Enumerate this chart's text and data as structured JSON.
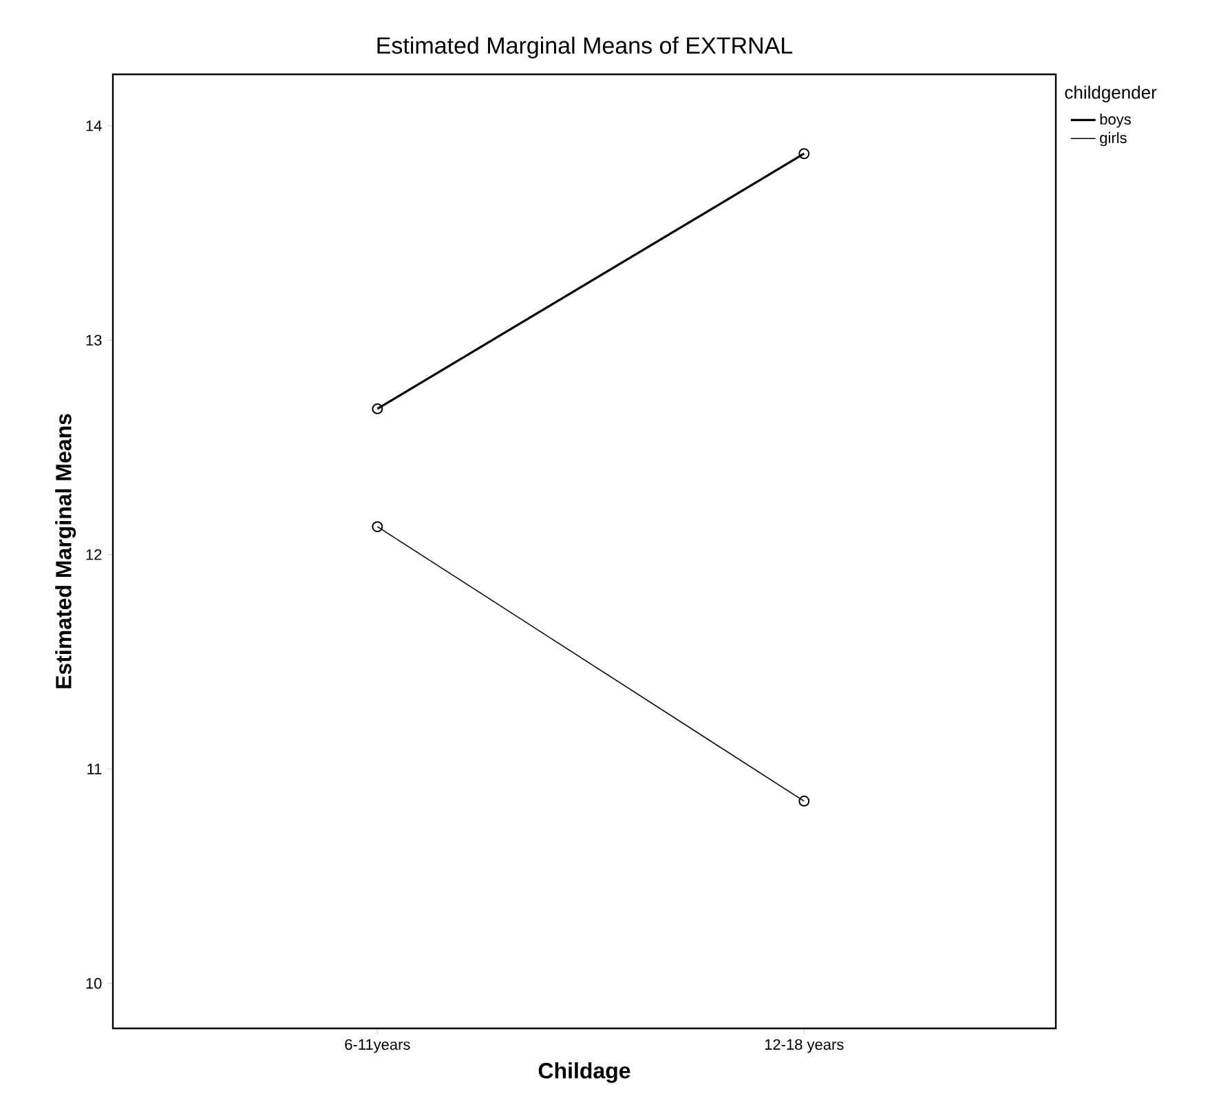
{
  "chart_data": {
    "type": "line",
    "title": "Estimated Marginal Means of EXTRNAL",
    "xlabel": "Childage",
    "ylabel": "Estimated Marginal Means",
    "legend_title": "childgender",
    "categories": [
      "6-11years",
      "12-18 years"
    ],
    "series": [
      {
        "name": "boys",
        "color": "#000000",
        "values": [
          12.68,
          13.87
        ]
      },
      {
        "name": "girls",
        "color": "#000000",
        "values": [
          12.13,
          10.85
        ]
      }
    ],
    "ylim": [
      9.79,
      14.24
    ],
    "yticks": [
      10,
      11,
      12,
      13,
      14
    ],
    "marker": "circle",
    "legend": "top right",
    "grid": false
  }
}
